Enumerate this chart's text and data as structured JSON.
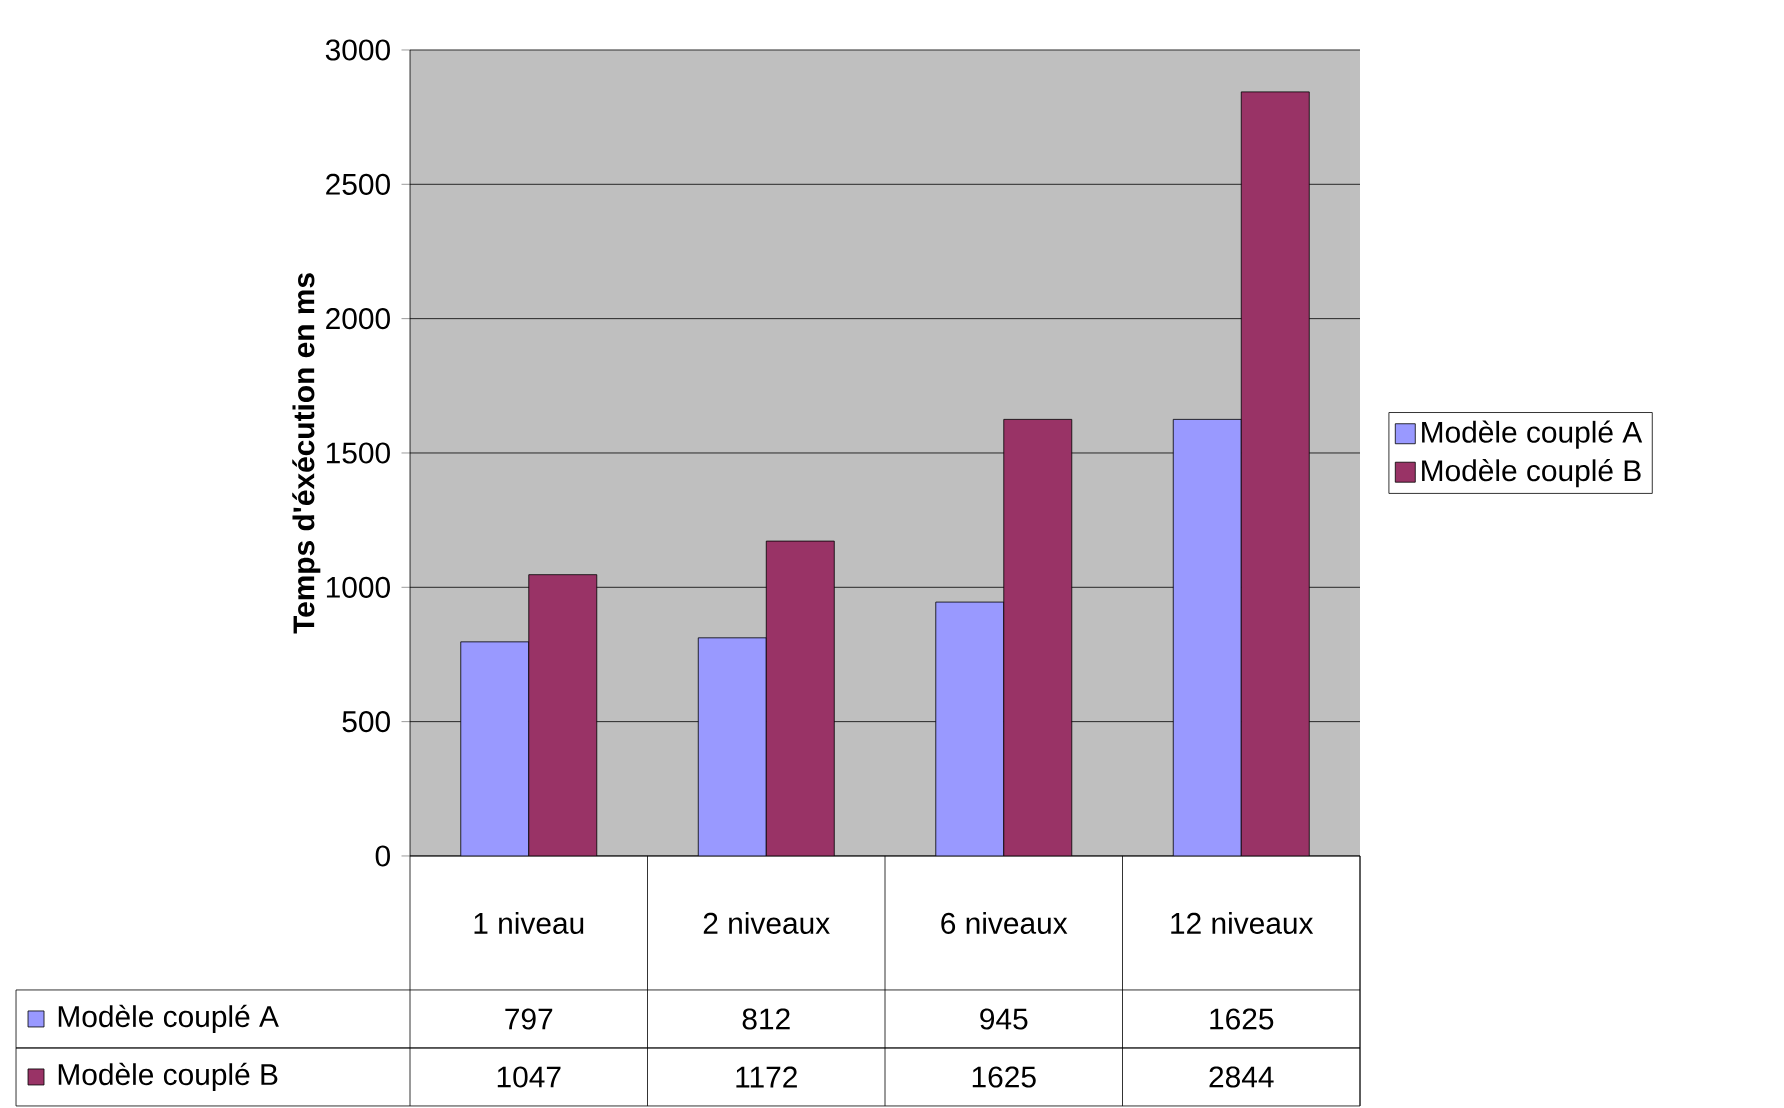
{
  "chart_data": {
    "type": "bar",
    "ylabel": "Temps d'éxécution en ms",
    "categories": [
      "1 niveau",
      "2 niveaux",
      "6 niveaux",
      "12 niveaux"
    ],
    "series": [
      {
        "name": "Modèle couplé A",
        "color": "#9999ff",
        "values": [
          797,
          812,
          945,
          1625
        ]
      },
      {
        "name": "Modèle couplé B",
        "color": "#993366",
        "values": [
          1047,
          1172,
          1625,
          2844
        ]
      }
    ],
    "ylim": [
      0,
      3000
    ],
    "yticks": [
      0,
      500,
      1000,
      1500,
      2000,
      2500,
      3000
    ],
    "grid": "y",
    "legend": "right",
    "data_labels": true
  }
}
